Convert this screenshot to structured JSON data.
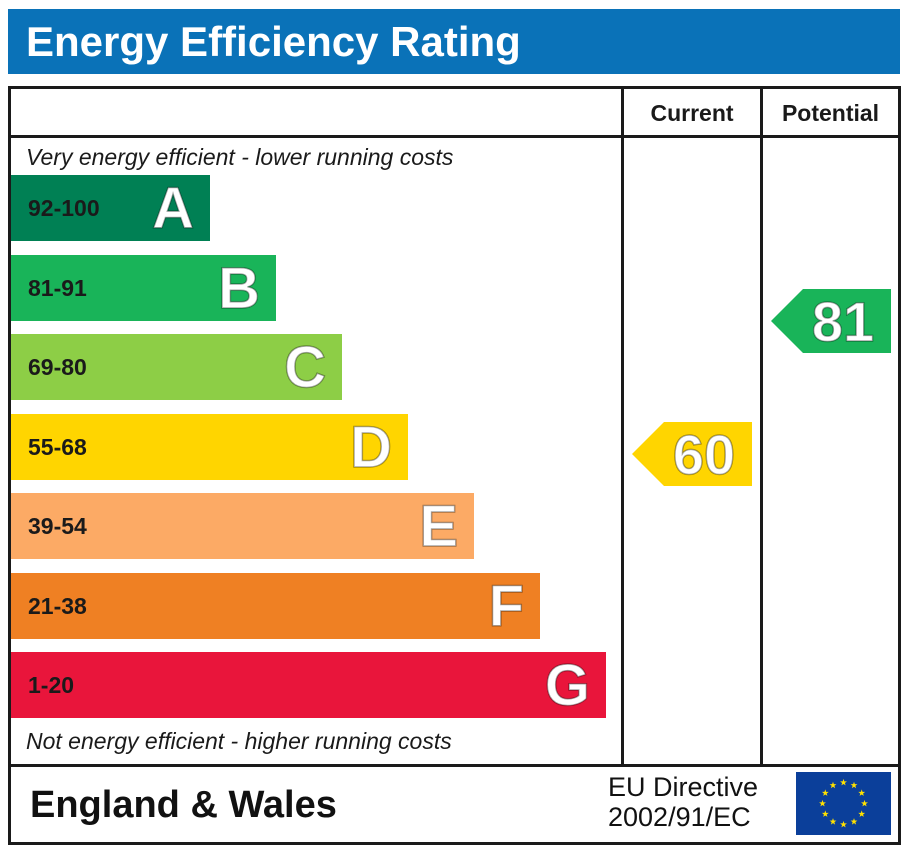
{
  "title": "Energy Efficiency Rating",
  "columns": {
    "current": "Current",
    "potential": "Potential"
  },
  "top_note": "Very energy efficient - lower running costs",
  "bottom_note": "Not energy efficient - higher running costs",
  "footer": {
    "country": "England & Wales",
    "directive_line1": "EU Directive",
    "directive_line2": "2002/91/EC"
  },
  "chart_data": {
    "type": "bar",
    "title": "Energy Efficiency Rating",
    "categories": [
      "A",
      "B",
      "C",
      "D",
      "E",
      "F",
      "G"
    ],
    "bands": [
      {
        "letter": "A",
        "range": "92-100",
        "min": 92,
        "max": 100,
        "color": "#008054",
        "text_color": "#1a1a1a"
      },
      {
        "letter": "B",
        "range": "81-91",
        "min": 81,
        "max": 91,
        "color": "#19b459",
        "text_color": "#1a1a1a"
      },
      {
        "letter": "C",
        "range": "69-80",
        "min": 69,
        "max": 80,
        "color": "#8dce46",
        "text_color": "#1a1a1a"
      },
      {
        "letter": "D",
        "range": "55-68",
        "min": 55,
        "max": 68,
        "color": "#ffd500",
        "text_color": "#1a1a1a"
      },
      {
        "letter": "E",
        "range": "39-54",
        "min": 39,
        "max": 54,
        "color": "#fcaa65",
        "text_color": "#1a1a1a"
      },
      {
        "letter": "F",
        "range": "21-38",
        "min": 21,
        "max": 38,
        "color": "#ef8023",
        "text_color": "#1a1a1a"
      },
      {
        "letter": "G",
        "range": "1-20",
        "min": 1,
        "max": 20,
        "color": "#e9153b",
        "text_color": "#1a1a1a"
      }
    ],
    "ratings": {
      "current": {
        "value": 60,
        "band": "D",
        "color": "#ffd500"
      },
      "potential": {
        "value": 81,
        "band": "B",
        "color": "#19b459"
      }
    }
  }
}
